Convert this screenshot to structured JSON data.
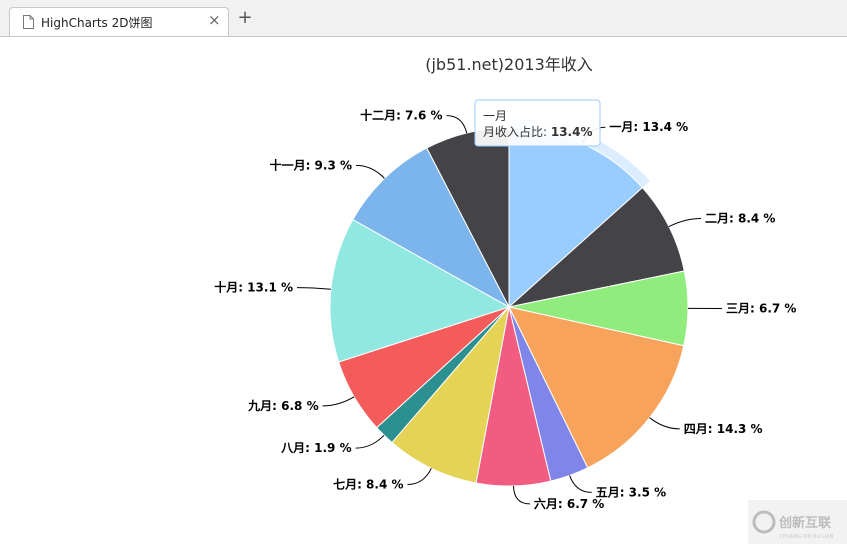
{
  "tab": {
    "title": "HighCharts 2D饼图",
    "close_glyph": "×",
    "new_tab_glyph": "+"
  },
  "tooltip": {
    "line1": "一月",
    "line2_label": "月收入占比: ",
    "line2_value": "13.4%"
  },
  "watermark": {
    "text": "创新互联",
    "subtext": "CHUANG XIN HU LIAN"
  },
  "chart_data": {
    "type": "pie",
    "title": "(jb51.net)2013年收入",
    "series": [
      {
        "name": "月收入占比",
        "categories": [
          "一月",
          "二月",
          "三月",
          "四月",
          "五月",
          "六月",
          "七月",
          "八月",
          "九月",
          "十月",
          "十一月",
          "十二月"
        ],
        "values": [
          13.4,
          8.4,
          6.7,
          14.3,
          3.5,
          6.7,
          8.4,
          1.9,
          6.8,
          13.1,
          9.3,
          7.6
        ],
        "colors": [
          "#99ccff",
          "#434348",
          "#90ed7d",
          "#f7a35c",
          "#8085e9",
          "#f15c80",
          "#e4d354",
          "#2b908f",
          "#f45b5b",
          "#91e8e1",
          "#7cb5ec",
          "#434348"
        ],
        "data_labels": [
          "一月: 13.4 %",
          "二月: 8.4 %",
          "三月: 6.7 %",
          "四月: 14.3 %",
          "五月: 3.5 %",
          "六月: 6.7 %",
          "七月: 8.4 %",
          "八月: 1.9 %",
          "九月: 6.8 %",
          "十月: 13.1 %",
          "十一月: 9.3 %",
          "十二月: 7.6 %"
        ]
      }
    ],
    "highlighted": "一月",
    "legend": "none"
  }
}
